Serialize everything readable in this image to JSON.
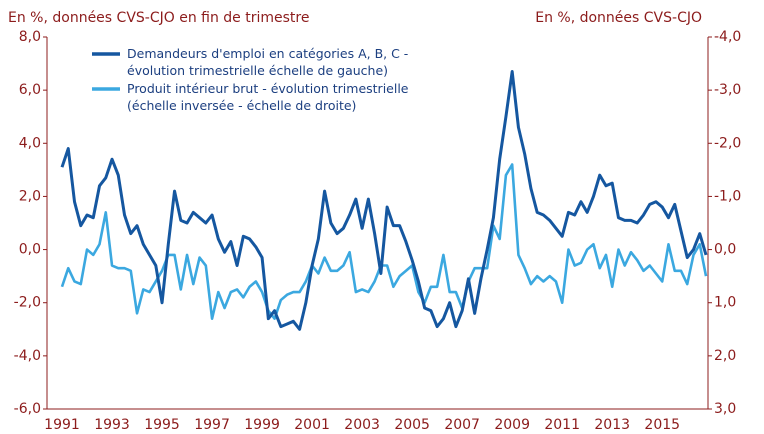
{
  "chart_data": {
    "type": "line",
    "title": "En %, données CVS-CJO en fin de trimestre",
    "subtitle": "En %, données CVS-CJO",
    "categories": [
      "1991",
      null,
      null,
      null,
      null,
      null,
      null,
      null,
      "1993",
      null,
      null,
      null,
      null,
      null,
      null,
      null,
      "1995",
      null,
      null,
      null,
      null,
      null,
      null,
      null,
      "1997",
      null,
      null,
      null,
      null,
      null,
      null,
      null,
      "1999",
      null,
      null,
      null,
      null,
      null,
      null,
      null,
      "2001",
      null,
      null,
      null,
      null,
      null,
      null,
      null,
      "2003",
      null,
      null,
      null,
      null,
      null,
      null,
      null,
      "2005",
      null,
      null,
      null,
      null,
      null,
      null,
      null,
      "2007",
      null,
      null,
      null,
      null,
      null,
      null,
      null,
      "2009",
      null,
      null,
      null,
      null,
      null,
      null,
      null,
      "2011",
      null,
      null,
      null,
      null,
      null,
      null,
      null,
      "2013",
      null,
      null,
      null,
      null,
      null,
      null,
      null,
      "2015",
      null,
      null,
      null,
      null,
      null,
      null,
      null
    ],
    "series": [
      {
        "name": "Demandeurs d'emploi en catégories A, B, C -\névolution trimestrielle échelle de gauche)",
        "color": "#1557a0",
        "axis": "y",
        "values": [
          3.1,
          3.8,
          1.8,
          0.9,
          1.3,
          1.2,
          2.4,
          2.7,
          3.4,
          2.8,
          1.3,
          0.6,
          0.9,
          0.2,
          -0.2,
          -0.6,
          -2.0,
          0.2,
          2.2,
          1.1,
          1.0,
          1.4,
          1.2,
          1.0,
          1.3,
          0.4,
          -0.1,
          0.3,
          -0.6,
          0.5,
          0.4,
          0.1,
          -0.3,
          -2.6,
          -2.3,
          -2.9,
          -2.8,
          -2.7,
          -3.0,
          -2.0,
          -0.6,
          0.4,
          2.2,
          1.0,
          0.6,
          0.8,
          1.3,
          1.9,
          0.8,
          1.9,
          0.6,
          -0.9,
          1.6,
          0.9,
          0.9,
          0.3,
          -0.4,
          -1.2,
          -2.2,
          -2.3,
          -2.9,
          -2.6,
          -2.0,
          -2.9,
          -2.3,
          -1.1,
          -2.4,
          -1.1,
          0.0,
          1.2,
          3.4,
          5.0,
          6.7,
          4.6,
          3.6,
          2.3,
          1.4,
          1.3,
          1.1,
          0.8,
          0.5,
          1.4,
          1.3,
          1.8,
          1.4,
          2.0,
          2.8,
          2.4,
          2.5,
          1.2,
          1.1,
          1.1,
          1.0,
          1.3,
          1.7,
          1.8,
          1.6,
          1.2,
          1.7,
          0.7,
          -0.3,
          0.0,
          0.6,
          -0.2
        ]
      },
      {
        "name": "Produit intérieur brut - évolution trimestrielle\n(échelle inversée - échelle de droite)",
        "color": "#3ba8e0",
        "axis": "y2",
        "values": [
          0.7,
          0.35,
          0.6,
          0.65,
          0.0,
          0.1,
          -0.1,
          -0.7,
          0.3,
          0.35,
          0.35,
          0.4,
          1.2,
          0.75,
          0.8,
          0.6,
          0.4,
          0.1,
          0.1,
          0.75,
          0.1,
          0.65,
          0.15,
          0.3,
          1.3,
          0.8,
          1.1,
          0.8,
          0.75,
          0.9,
          0.7,
          0.6,
          0.8,
          1.15,
          1.3,
          0.95,
          0.85,
          0.8,
          0.8,
          0.6,
          0.3,
          0.45,
          0.15,
          0.4,
          0.4,
          0.3,
          0.05,
          0.8,
          0.75,
          0.8,
          0.6,
          0.3,
          0.3,
          0.7,
          0.5,
          0.4,
          0.3,
          0.8,
          1.0,
          0.7,
          0.7,
          0.1,
          0.8,
          0.8,
          1.1,
          0.6,
          0.35,
          0.35,
          0.35,
          -0.45,
          -0.2,
          -1.4,
          -1.6,
          0.1,
          0.35,
          0.65,
          0.5,
          0.6,
          0.5,
          0.6,
          1.0,
          0.0,
          0.3,
          0.25,
          0.0,
          -0.1,
          0.35,
          0.1,
          0.7,
          0.0,
          0.3,
          0.05,
          0.2,
          0.4,
          0.3,
          0.45,
          0.6,
          -0.1,
          0.4,
          0.4,
          0.65,
          0.1,
          -0.1,
          0.5
        ]
      }
    ],
    "ylim": [
      -6,
      8
    ],
    "yticks": [
      {
        "value": -6,
        "label": "-6,0"
      },
      {
        "value": -4,
        "label": "-4,0"
      },
      {
        "value": -2,
        "label": "-2,0"
      },
      {
        "value": 0,
        "label": "0,0"
      },
      {
        "value": 2,
        "label": "2,0"
      },
      {
        "value": 4,
        "label": "4,0"
      },
      {
        "value": 6,
        "label": "6,0"
      },
      {
        "value": 8,
        "label": "8,0"
      }
    ],
    "y2lim": [
      3,
      -4
    ],
    "y2ticks": [
      {
        "value": 3,
        "label": "3,0"
      },
      {
        "value": 2,
        "label": "2,0"
      },
      {
        "value": 1,
        "label": "1,0"
      },
      {
        "value": 0,
        "label": "0,0"
      },
      {
        "value": -1,
        "label": "-1,0"
      },
      {
        "value": -2,
        "label": "-2,0"
      },
      {
        "value": -3,
        "label": "-3,0"
      },
      {
        "value": -4,
        "label": "-4,0"
      }
    ],
    "grid": false
  }
}
